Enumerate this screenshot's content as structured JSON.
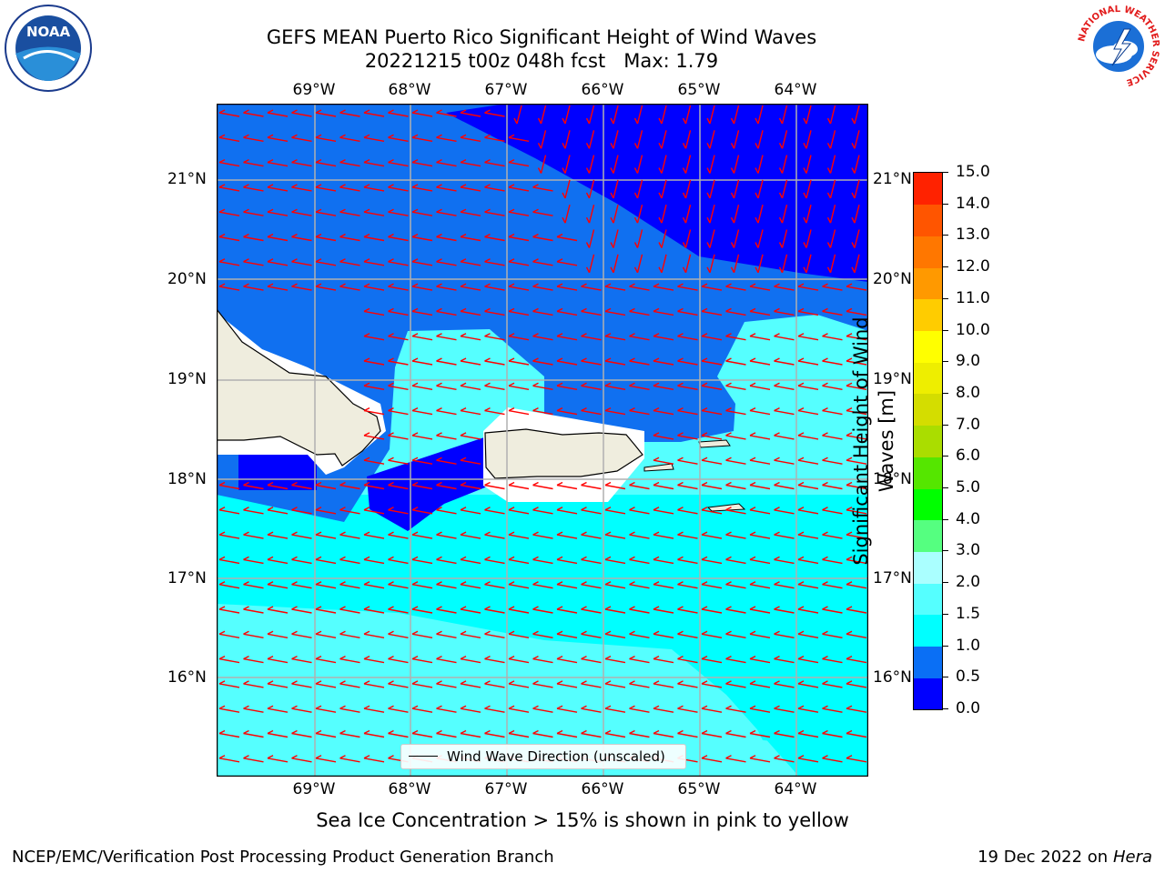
{
  "header": {
    "title_line1": "GEFS MEAN Puerto Rico Significant Height of Wind Waves",
    "title_line2": "20221215 t00z 048h fcst   Max: 1.79"
  },
  "logos": {
    "left_text": "NOAA",
    "right_text": "NATIONAL WEATHER SERVICE"
  },
  "map": {
    "lon_labels": [
      "69°W",
      "68°W",
      "67°W",
      "66°W",
      "65°W",
      "64°W"
    ],
    "lat_labels": [
      "21°N",
      "20°N",
      "19°N",
      "18°N",
      "17°N",
      "16°N"
    ]
  },
  "colorbar": {
    "title": "Significant Height of Wind Waves [m]",
    "ticks": [
      "0.0",
      "0.5",
      "1.0",
      "1.5",
      "2.0",
      "3.0",
      "4.0",
      "5.0",
      "6.0",
      "7.0",
      "8.0",
      "9.0",
      "10.0",
      "11.0",
      "12.0",
      "13.0",
      "14.0",
      "15.0"
    ],
    "colors": [
      "#0000ff",
      "#0a6ff5",
      "#00ffff",
      "#55ffff",
      "#aaffff",
      "#55ff80",
      "#00ff00",
      "#55e600",
      "#aadd00",
      "#d4dd00",
      "#eeee00",
      "#ffff00",
      "#ffcc00",
      "#ff9900",
      "#ff7700",
      "#ff5500",
      "#ff2200"
    ]
  },
  "legend": {
    "label": "Wind Wave Direction (unscaled)"
  },
  "note": "Sea Ice Concentration > 15% is shown in pink to yellow",
  "footer": {
    "left": "NCEP/EMC/Verification Post Processing Product Generation Branch",
    "right_date": "19 Dec 2022 on",
    "right_host": "Hera"
  },
  "colors": {
    "dark_blue": "#0000ff",
    "mid_blue": "#1070f0",
    "cyan": "#00ffff",
    "light_cyan": "#55ffff",
    "land": "#efedde",
    "arrow": "#ff0000"
  }
}
